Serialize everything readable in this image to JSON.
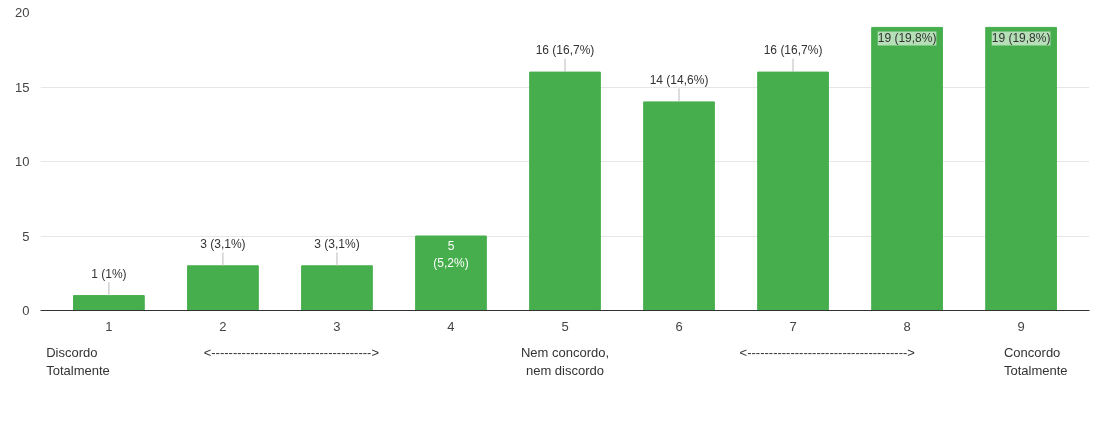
{
  "chart_data": {
    "type": "bar",
    "categories": [
      "1",
      "2",
      "3",
      "4",
      "5",
      "6",
      "7",
      "8",
      "9"
    ],
    "values": [
      1,
      3,
      3,
      5,
      16,
      14,
      16,
      19,
      19
    ],
    "value_labels": [
      "1 (1%)",
      "3 (3,1%)",
      "3 (3,1%)",
      "5\n(5,2%)",
      "16 (16,7%)",
      "14 (14,6%)",
      "16 (16,7%)",
      "19 (19,8%)",
      "19 (19,8%)"
    ],
    "color": "#46ae4c",
    "ylim": [
      0,
      20
    ],
    "yticks": [
      0,
      5,
      10,
      15,
      20
    ],
    "grid": "y",
    "annotations": [
      "Discordo\nTotalmente",
      "<------------------------------------->",
      "Nem concordo,\nnem discordo",
      "<------------------------------------->",
      "Concordo\nTotalmente"
    ]
  }
}
